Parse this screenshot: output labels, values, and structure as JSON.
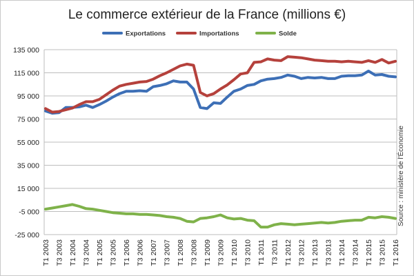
{
  "chart_data": {
    "type": "line",
    "title": "Le commerce extérieur de la France (millions €)",
    "source": "Source : ministère de l'Économie",
    "ylim": [
      -25000,
      135000
    ],
    "yticks": [
      "135 000",
      "115 000",
      "95 000",
      "75 000",
      "55 000",
      "35 000",
      "15 000",
      "-5 000",
      "-25 000"
    ],
    "ytick_values": [
      135000,
      115000,
      95000,
      75000,
      55000,
      35000,
      15000,
      -5000,
      -25000
    ],
    "grid": true,
    "legend_position": "top",
    "xticks": [
      "T1 2003",
      "T3 2003",
      "T1 2004",
      "T3 2004",
      "T1 2005",
      "T3 2005",
      "T1 2006",
      "T3 2006",
      "T1 2007",
      "T3 2007",
      "T1 2008",
      "T3 2008",
      "T1 2009",
      "T3 2009",
      "T1 2010",
      "T3 2010",
      "T1 2011",
      "T3 2011",
      "T1 2012",
      "T3 2012",
      "T1 2013",
      "T3 2013",
      "T1 2014",
      "T3 2014",
      "T1 2015",
      "T3 2015",
      "T1 2016"
    ],
    "x": [
      "T1 2003",
      "T2 2003",
      "T3 2003",
      "T4 2003",
      "T1 2004",
      "T2 2004",
      "T3 2004",
      "T4 2004",
      "T1 2005",
      "T2 2005",
      "T3 2005",
      "T4 2005",
      "T1 2006",
      "T2 2006",
      "T3 2006",
      "T4 2006",
      "T1 2007",
      "T2 2007",
      "T3 2007",
      "T4 2007",
      "T1 2008",
      "T2 2008",
      "T3 2008",
      "T4 2008",
      "T1 2009",
      "T2 2009",
      "T3 2009",
      "T4 2009",
      "T1 2010",
      "T2 2010",
      "T3 2010",
      "T4 2010",
      "T1 2011",
      "T2 2011",
      "T3 2011",
      "T4 2011",
      "T1 2012",
      "T2 2012",
      "T3 2012",
      "T4 2012",
      "T1 2013",
      "T2 2013",
      "T3 2013",
      "T4 2013",
      "T1 2014",
      "T2 2014",
      "T3 2014",
      "T4 2014",
      "T1 2015",
      "T2 2015",
      "T3 2015",
      "T4 2015",
      "T1 2016"
    ],
    "series": [
      {
        "name": "Exportations",
        "color": "#3d6fb6",
        "values": [
          82000,
          80000,
          80500,
          85000,
          85000,
          85500,
          87000,
          85000,
          87500,
          90500,
          94000,
          97000,
          99000,
          99000,
          99500,
          99000,
          103000,
          104000,
          105500,
          108000,
          107000,
          107000,
          101000,
          85000,
          84000,
          89000,
          88500,
          94000,
          99000,
          101000,
          104000,
          105000,
          108000,
          109500,
          110000,
          111000,
          113000,
          112000,
          110000,
          111000,
          110500,
          111000,
          110000,
          110000,
          112000,
          112500,
          112500,
          113000,
          116500,
          113000,
          113500,
          112000,
          111500
        ]
      },
      {
        "name": "Importations",
        "color": "#b5413c",
        "values": [
          84000,
          81000,
          81500,
          83000,
          84500,
          87500,
          90000,
          90000,
          92000,
          96000,
          100000,
          103500,
          105000,
          106000,
          107000,
          107500,
          109500,
          112500,
          115000,
          118000,
          121000,
          122500,
          121500,
          98000,
          95000,
          97000,
          101000,
          104500,
          109000,
          114000,
          115000,
          124000,
          124500,
          127000,
          126000,
          125500,
          129000,
          128500,
          128000,
          127000,
          126000,
          125500,
          125000,
          125000,
          124500,
          125000,
          124500,
          124000,
          125500,
          124000,
          126500,
          123500,
          125000
        ]
      },
      {
        "name": "Solde",
        "color": "#7fb24a",
        "values": [
          -3000,
          -2000,
          -1000,
          0,
          1000,
          -500,
          -2500,
          -3000,
          -4000,
          -5000,
          -6000,
          -6500,
          -7000,
          -7000,
          -7500,
          -7500,
          -8000,
          -8500,
          -9500,
          -10000,
          -11000,
          -13500,
          -14000,
          -11000,
          -10500,
          -9500,
          -8000,
          -10500,
          -11500,
          -11000,
          -12500,
          -13000,
          -18500,
          -18500,
          -16500,
          -15500,
          -16000,
          -16500,
          -16000,
          -15500,
          -15000,
          -14500,
          -15000,
          -14500,
          -13500,
          -13000,
          -12500,
          -12500,
          -10000,
          -10500,
          -9500,
          -10000,
          -11000
        ]
      }
    ]
  }
}
